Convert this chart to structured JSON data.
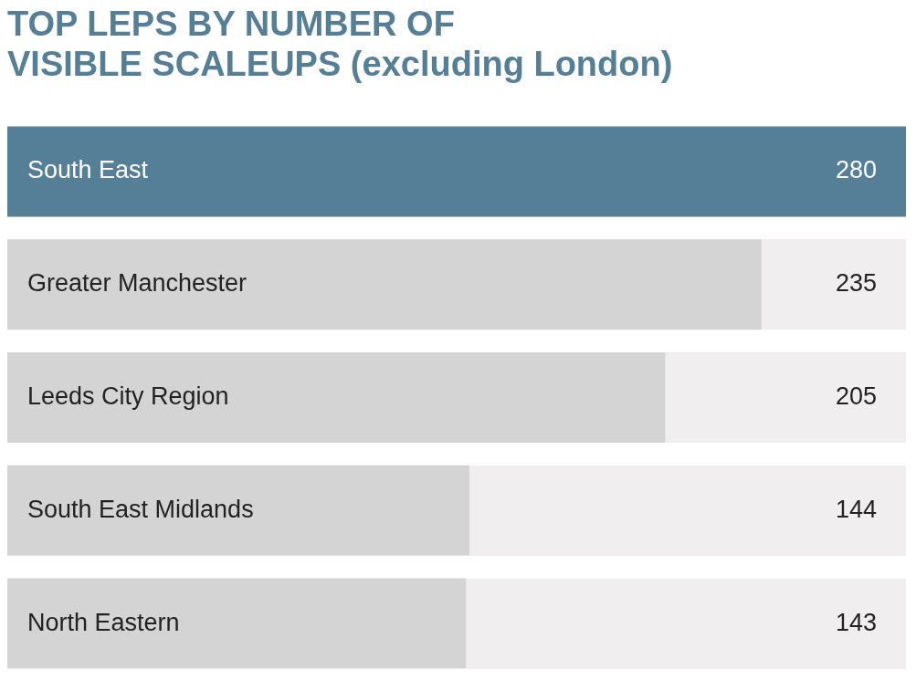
{
  "chart_data": {
    "type": "bar",
    "orientation": "horizontal",
    "title": "TOP LEPS BY NUMBER OF\nVISIBLE SCALEUPS (excluding London)",
    "categories": [
      "South East",
      "Greater Manchester",
      "Leeds City Region",
      "South East Midlands",
      "North Eastern"
    ],
    "values": [
      280,
      235,
      205,
      144,
      143
    ],
    "colors": [
      "#557f96",
      "#d4d4d4",
      "#d4d4d4",
      "#d4d4d4",
      "#d4d4d4"
    ],
    "xlim": [
      0,
      280
    ],
    "data_labels": true,
    "tick_labels": false
  }
}
